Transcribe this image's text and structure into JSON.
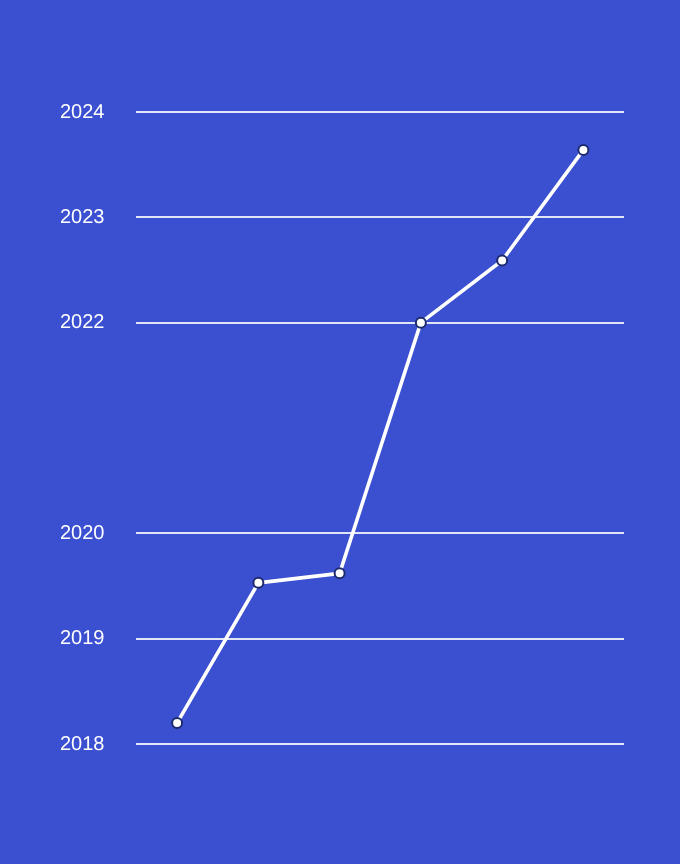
{
  "chart_data": {
    "type": "line",
    "categories": [
      null,
      null,
      null,
      null,
      null,
      null
    ],
    "series": [
      {
        "color": "#ffffff",
        "values": [
          2018.2,
          2019.53,
          2019.62,
          2022.0,
          2022.59,
          2023.64
        ]
      }
    ],
    "ylim": [
      2018,
      2024
    ],
    "yticks": [
      2018,
      2019,
      2020,
      2022,
      2023,
      2024
    ],
    "tick_labels": "y",
    "grid": "y",
    "marker": "circle",
    "line_style": "solid",
    "legend": false
  }
}
